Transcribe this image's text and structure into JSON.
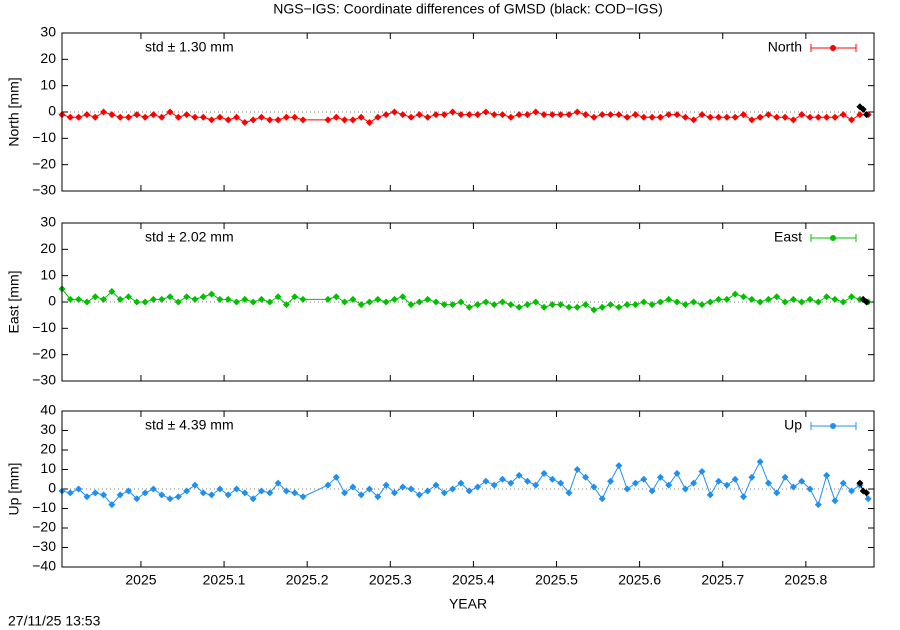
{
  "chart_data": [
    {
      "type": "line",
      "title": "NGS−IGS: Coordinate differences of GMSD (black: COD−IGS)",
      "ylabel": "North [mm]",
      "annotation": "std ± 1.30 mm",
      "xlim": [
        2024.905,
        2025.882
      ],
      "xticks": [
        2025,
        2025.1,
        2025.2,
        2025.3,
        2025.4,
        2025.5,
        2025.6,
        2025.7,
        2025.8
      ],
      "ylim": [
        -30,
        30
      ],
      "yticks": [
        {
          "value": -30,
          "label": "−30"
        },
        {
          "value": -20,
          "label": "−20"
        },
        {
          "value": -10,
          "label": "−10"
        },
        0,
        10,
        20,
        30
      ],
      "x": [
        2024.905,
        2024.915,
        2024.925,
        2024.935,
        2024.945,
        2024.955,
        2024.965,
        2024.975,
        2024.985,
        2024.995,
        2025.005,
        2025.015,
        2025.025,
        2025.035,
        2025.045,
        2025.055,
        2025.065,
        2025.075,
        2025.085,
        2025.095,
        2025.105,
        2025.115,
        2025.125,
        2025.135,
        2025.145,
        2025.155,
        2025.165,
        2025.175,
        2025.185,
        2025.195,
        2025.225,
        2025.235,
        2025.245,
        2025.255,
        2025.265,
        2025.275,
        2025.285,
        2025.295,
        2025.305,
        2025.315,
        2025.325,
        2025.335,
        2025.345,
        2025.355,
        2025.365,
        2025.375,
        2025.385,
        2025.395,
        2025.405,
        2025.415,
        2025.425,
        2025.435,
        2025.445,
        2025.455,
        2025.465,
        2025.475,
        2025.485,
        2025.495,
        2025.505,
        2025.515,
        2025.525,
        2025.535,
        2025.545,
        2025.555,
        2025.565,
        2025.575,
        2025.585,
        2025.595,
        2025.605,
        2025.615,
        2025.625,
        2025.635,
        2025.645,
        2025.655,
        2025.665,
        2025.675,
        2025.685,
        2025.695,
        2025.705,
        2025.715,
        2025.725,
        2025.735,
        2025.745,
        2025.755,
        2025.765,
        2025.775,
        2025.785,
        2025.795,
        2025.805,
        2025.815,
        2025.825,
        2025.835,
        2025.845,
        2025.855,
        2025.865,
        2025.875
      ],
      "series": [
        {
          "name": "North",
          "color": "#ff0000",
          "values": [
            -1,
            -2,
            -2,
            -1,
            -2,
            0,
            -1,
            -2,
            -2,
            -1,
            -2,
            -1,
            -2,
            0,
            -2,
            -1,
            -2,
            -2,
            -3,
            -2,
            -3,
            -2,
            -4,
            -3,
            -2,
            -3,
            -3,
            -2,
            -2,
            -3,
            -3,
            -2,
            -3,
            -3,
            -2,
            -4,
            -2,
            -1,
            0,
            -1,
            -2,
            -1,
            -2,
            -1,
            -1,
            0,
            -1,
            -1,
            -1,
            0,
            -1,
            -1,
            -2,
            -1,
            -1,
            0,
            -1,
            -1,
            -1,
            -1,
            0,
            -1,
            -2,
            -1,
            -1,
            -1,
            -2,
            -1,
            -2,
            -2,
            -2,
            -1,
            -1,
            -2,
            -3,
            -1,
            -2,
            -2,
            -2,
            -2,
            -1,
            -3,
            -2,
            -1,
            -2,
            -2,
            -3,
            -1,
            -2,
            -2,
            -2,
            -2,
            -1,
            -3,
            -1,
            -1
          ]
        },
        {
          "color": "#000000",
          "x": [
            2025.865,
            2025.869,
            2025.873
          ],
          "values": [
            2,
            1,
            -1
          ]
        }
      ]
    },
    {
      "type": "line",
      "ylabel": "East [mm]",
      "annotation": "std ± 2.02 mm",
      "xlim": [
        2024.905,
        2025.882
      ],
      "xticks": [
        2025,
        2025.1,
        2025.2,
        2025.3,
        2025.4,
        2025.5,
        2025.6,
        2025.7,
        2025.8
      ],
      "ylim": [
        -30,
        30
      ],
      "yticks": [
        {
          "value": -30,
          "label": "−30"
        },
        {
          "value": -20,
          "label": "−20"
        },
        {
          "value": -10,
          "label": "−10"
        },
        0,
        10,
        20,
        30
      ],
      "x": [
        2024.905,
        2024.915,
        2024.925,
        2024.935,
        2024.945,
        2024.955,
        2024.965,
        2024.975,
        2024.985,
        2024.995,
        2025.005,
        2025.015,
        2025.025,
        2025.035,
        2025.045,
        2025.055,
        2025.065,
        2025.075,
        2025.085,
        2025.095,
        2025.105,
        2025.115,
        2025.125,
        2025.135,
        2025.145,
        2025.155,
        2025.165,
        2025.175,
        2025.185,
        2025.195,
        2025.225,
        2025.235,
        2025.245,
        2025.255,
        2025.265,
        2025.275,
        2025.285,
        2025.295,
        2025.305,
        2025.315,
        2025.325,
        2025.335,
        2025.345,
        2025.355,
        2025.365,
        2025.375,
        2025.385,
        2025.395,
        2025.405,
        2025.415,
        2025.425,
        2025.435,
        2025.445,
        2025.455,
        2025.465,
        2025.475,
        2025.485,
        2025.495,
        2025.505,
        2025.515,
        2025.525,
        2025.535,
        2025.545,
        2025.555,
        2025.565,
        2025.575,
        2025.585,
        2025.595,
        2025.605,
        2025.615,
        2025.625,
        2025.635,
        2025.645,
        2025.655,
        2025.665,
        2025.675,
        2025.685,
        2025.695,
        2025.705,
        2025.715,
        2025.725,
        2025.735,
        2025.745,
        2025.755,
        2025.765,
        2025.775,
        2025.785,
        2025.795,
        2025.805,
        2025.815,
        2025.825,
        2025.835,
        2025.845,
        2025.855,
        2025.865,
        2025.875
      ],
      "series": [
        {
          "name": "East",
          "color": "#00c000",
          "values": [
            5,
            1,
            1,
            0,
            2,
            1,
            4,
            1,
            2,
            0,
            0,
            1,
            1,
            2,
            0,
            2,
            1,
            2,
            3,
            1,
            1,
            0,
            1,
            0,
            1,
            0,
            2,
            -1,
            2,
            1,
            1,
            2,
            0,
            1,
            -1,
            0,
            1,
            0,
            1,
            2,
            -1,
            0,
            1,
            0,
            -1,
            -1,
            0,
            -2,
            -1,
            0,
            -1,
            0,
            -1,
            -2,
            -1,
            0,
            -2,
            -1,
            -1,
            -2,
            -2,
            -1,
            -3,
            -2,
            -1,
            -2,
            -1,
            -1,
            0,
            -1,
            0,
            1,
            0,
            -1,
            0,
            -1,
            0,
            1,
            1,
            3,
            2,
            1,
            0,
            1,
            2,
            0,
            1,
            0,
            1,
            0,
            2,
            1,
            0,
            2,
            1,
            0
          ]
        },
        {
          "color": "#000000",
          "x": [
            2025.869,
            2025.873
          ],
          "values": [
            1,
            0
          ]
        }
      ]
    },
    {
      "type": "line",
      "ylabel": "Up [mm]",
      "xlabel": "YEAR",
      "annotation": "std ± 4.39 mm",
      "xlim": [
        2024.905,
        2025.882
      ],
      "xticks": [
        2025,
        2025.1,
        2025.2,
        2025.3,
        2025.4,
        2025.5,
        2025.6,
        2025.7,
        2025.8
      ],
      "ylim": [
        -40,
        40
      ],
      "yticks": [
        {
          "value": -40,
          "label": "−40"
        },
        {
          "value": -30,
          "label": "−30"
        },
        {
          "value": -20,
          "label": "−20"
        },
        {
          "value": -10,
          "label": "−10"
        },
        0,
        10,
        20,
        30,
        40
      ],
      "x": [
        2024.905,
        2024.915,
        2024.925,
        2024.935,
        2024.945,
        2024.955,
        2024.965,
        2024.975,
        2024.985,
        2024.995,
        2025.005,
        2025.015,
        2025.025,
        2025.035,
        2025.045,
        2025.055,
        2025.065,
        2025.075,
        2025.085,
        2025.095,
        2025.105,
        2025.115,
        2025.125,
        2025.135,
        2025.145,
        2025.155,
        2025.165,
        2025.175,
        2025.185,
        2025.195,
        2025.225,
        2025.235,
        2025.245,
        2025.255,
        2025.265,
        2025.275,
        2025.285,
        2025.295,
        2025.305,
        2025.315,
        2025.325,
        2025.335,
        2025.345,
        2025.355,
        2025.365,
        2025.375,
        2025.385,
        2025.395,
        2025.405,
        2025.415,
        2025.425,
        2025.435,
        2025.445,
        2025.455,
        2025.465,
        2025.475,
        2025.485,
        2025.495,
        2025.505,
        2025.515,
        2025.525,
        2025.535,
        2025.545,
        2025.555,
        2025.565,
        2025.575,
        2025.585,
        2025.595,
        2025.605,
        2025.615,
        2025.625,
        2025.635,
        2025.645,
        2025.655,
        2025.665,
        2025.675,
        2025.685,
        2025.695,
        2025.705,
        2025.715,
        2025.725,
        2025.735,
        2025.745,
        2025.755,
        2025.765,
        2025.775,
        2025.785,
        2025.795,
        2025.805,
        2025.815,
        2025.825,
        2025.835,
        2025.845,
        2025.855,
        2025.865,
        2025.875
      ],
      "series": [
        {
          "name": "Up",
          "color": "#2090f0",
          "values": [
            -1,
            -2,
            0,
            -4,
            -2,
            -3,
            -8,
            -3,
            -1,
            -5,
            -2,
            0,
            -3,
            -5,
            -4,
            -1,
            2,
            -2,
            -3,
            0,
            -3,
            0,
            -2,
            -5,
            -1,
            -2,
            3,
            -1,
            -2,
            -4,
            2,
            6,
            -2,
            1,
            -3,
            0,
            -4,
            2,
            -2,
            1,
            0,
            -3,
            -1,
            2,
            -2,
            0,
            3,
            -1,
            1,
            4,
            2,
            5,
            3,
            7,
            4,
            2,
            8,
            5,
            3,
            -2,
            10,
            6,
            1,
            -5,
            4,
            12,
            0,
            3,
            5,
            -1,
            6,
            2,
            8,
            0,
            3,
            9,
            -3,
            4,
            2,
            5,
            -4,
            6,
            14,
            3,
            -2,
            6,
            1,
            4,
            0,
            -8,
            7,
            -6,
            3,
            -1,
            2,
            -5
          ]
        },
        {
          "color": "#000000",
          "x": [
            2025.865,
            2025.869,
            2025.873
          ],
          "values": [
            3,
            -1,
            -2
          ]
        }
      ]
    }
  ],
  "footer": "27/11/25 13:53"
}
